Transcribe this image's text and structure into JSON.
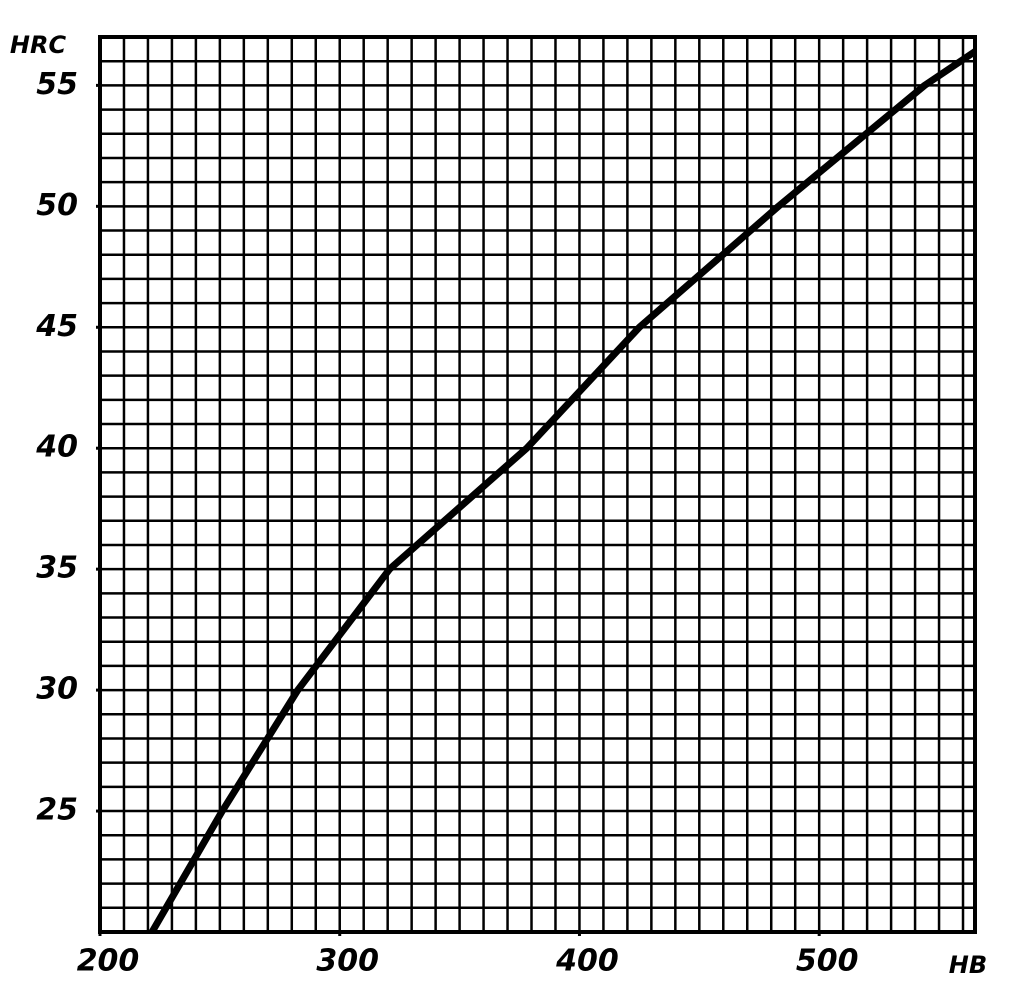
{
  "chart_data": {
    "type": "line",
    "x_label": "HB",
    "y_label": "HRC",
    "x": [
      221.7,
      251,
      282.5,
      320.8,
      378,
      425,
      483,
      544,
      565
    ],
    "series": [
      {
        "name": null,
        "color": "#000000",
        "values": [
          20,
          25,
          30,
          35,
          40,
          45,
          50,
          55,
          56.4
        ]
      }
    ],
    "xlim": [
      200,
      565
    ],
    "ylim": [
      20,
      57
    ],
    "xticks": [
      200,
      300,
      400,
      500
    ],
    "yticks": [
      25,
      30,
      35,
      40,
      45,
      50,
      55
    ],
    "grid": {
      "x_step": 10,
      "y_step": 1
    }
  }
}
